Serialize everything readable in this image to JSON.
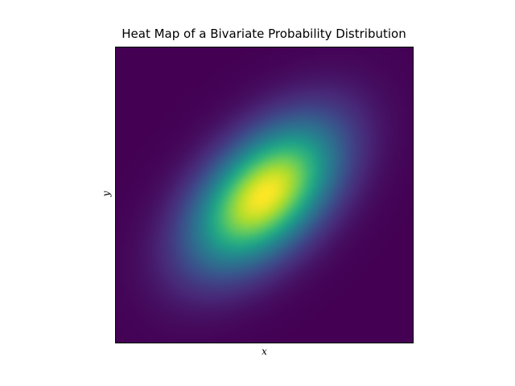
{
  "chart_data": {
    "type": "heatmap",
    "title": "Heat Map of a Bivariate Probability Distribution",
    "xlabel": "x",
    "ylabel": "y",
    "colormap": "viridis",
    "grid": false,
    "colorbar": false,
    "distribution": {
      "kind": "bivariate-normal",
      "mean": [
        0,
        0
      ],
      "cov": [
        [
          1,
          0.5
        ],
        [
          0.5,
          1
        ]
      ]
    },
    "xlim": [
      -3,
      3
    ],
    "ylim": [
      -3,
      3
    ],
    "resolution": 100
  },
  "colors": {
    "viridis": [
      "#440154",
      "#482878",
      "#3e4989",
      "#31688e",
      "#26828e",
      "#1f9e89",
      "#35b779",
      "#6ece58",
      "#b5de2b",
      "#fde725"
    ]
  }
}
